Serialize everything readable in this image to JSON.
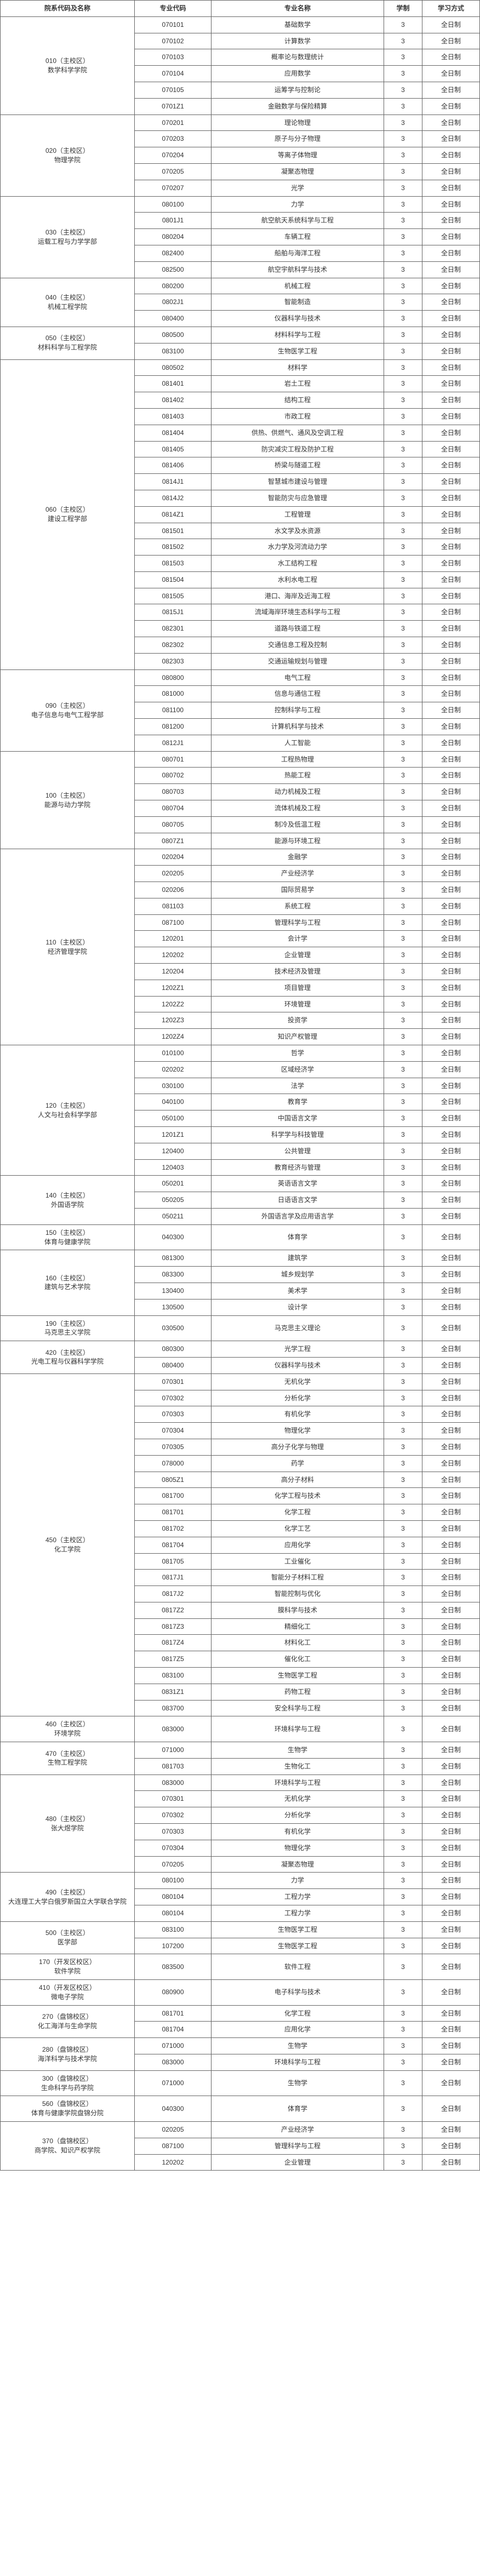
{
  "headers": {
    "dept": "院系代码及名称",
    "majorCode": "专业代码",
    "majorName": "专业名称",
    "years": "学制",
    "mode": "学习方式"
  },
  "defaults": {
    "years": "3",
    "mode": "全日制"
  },
  "departments": [
    {
      "name": "010（主校区）\n数学科学学院",
      "majors": [
        {
          "code": "070101",
          "name": "基础数学"
        },
        {
          "code": "070102",
          "name": "计算数学"
        },
        {
          "code": "070103",
          "name": "概率论与数理统计"
        },
        {
          "code": "070104",
          "name": "应用数学"
        },
        {
          "code": "070105",
          "name": "运筹学与控制论"
        },
        {
          "code": "0701Z1",
          "name": "金融数学与保险精算"
        }
      ]
    },
    {
      "name": "020（主校区）\n物理学院",
      "majors": [
        {
          "code": "070201",
          "name": "理论物理"
        },
        {
          "code": "070203",
          "name": "原子与分子物理"
        },
        {
          "code": "070204",
          "name": "等离子体物理"
        },
        {
          "code": "070205",
          "name": "凝聚态物理"
        },
        {
          "code": "070207",
          "name": "光学"
        }
      ]
    },
    {
      "name": "030（主校区）\n运载工程与力学学部",
      "majors": [
        {
          "code": "080100",
          "name": "力学"
        },
        {
          "code": "0801J1",
          "name": "航空航天系统科学与工程"
        },
        {
          "code": "080204",
          "name": "车辆工程"
        },
        {
          "code": "082400",
          "name": "船舶与海洋工程"
        },
        {
          "code": "082500",
          "name": "航空宇航科学与技术"
        }
      ]
    },
    {
      "name": "040（主校区）\n机械工程学院",
      "majors": [
        {
          "code": "080200",
          "name": "机械工程"
        },
        {
          "code": "0802J1",
          "name": "智能制造"
        },
        {
          "code": "080400",
          "name": "仪器科学与技术"
        }
      ]
    },
    {
      "name": "050（主校区）\n材料科学与工程学院",
      "majors": [
        {
          "code": "080500",
          "name": "材料科学与工程"
        },
        {
          "code": "083100",
          "name": "生物医学工程"
        }
      ]
    },
    {
      "name": "060（主校区）\n建设工程学部",
      "majors": [
        {
          "code": "080502",
          "name": "材料学"
        },
        {
          "code": "081401",
          "name": "岩土工程"
        },
        {
          "code": "081402",
          "name": "结构工程"
        },
        {
          "code": "081403",
          "name": "市政工程"
        },
        {
          "code": "081404",
          "name": "供热、供燃气、通风及空调工程"
        },
        {
          "code": "081405",
          "name": "防灾减灾工程及防护工程"
        },
        {
          "code": "081406",
          "name": "桥梁与隧道工程"
        },
        {
          "code": "0814J1",
          "name": "智慧城市建设与管理"
        },
        {
          "code": "0814J2",
          "name": "智能防灾与应急管理"
        },
        {
          "code": "0814Z1",
          "name": "工程管理"
        },
        {
          "code": "081501",
          "name": "水文学及水资源"
        },
        {
          "code": "081502",
          "name": "水力学及河流动力学"
        },
        {
          "code": "081503",
          "name": "水工结构工程"
        },
        {
          "code": "081504",
          "name": "水利水电工程"
        },
        {
          "code": "081505",
          "name": "港口、海岸及近海工程"
        },
        {
          "code": "0815J1",
          "name": "流域海岸环境生态科学与工程"
        },
        {
          "code": "082301",
          "name": "道路与铁道工程"
        },
        {
          "code": "082302",
          "name": "交通信息工程及控制"
        },
        {
          "code": "082303",
          "name": "交通运输规划与管理"
        }
      ]
    },
    {
      "name": "090（主校区）\n电子信息与电气工程学部",
      "majors": [
        {
          "code": "080800",
          "name": "电气工程"
        },
        {
          "code": "081000",
          "name": "信息与通信工程"
        },
        {
          "code": "081100",
          "name": "控制科学与工程"
        },
        {
          "code": "081200",
          "name": "计算机科学与技术"
        },
        {
          "code": "0812J1",
          "name": "人工智能"
        }
      ]
    },
    {
      "name": "100（主校区）\n能源与动力学院",
      "majors": [
        {
          "code": "080701",
          "name": "工程热物理"
        },
        {
          "code": "080702",
          "name": "热能工程"
        },
        {
          "code": "080703",
          "name": "动力机械及工程"
        },
        {
          "code": "080704",
          "name": "流体机械及工程"
        },
        {
          "code": "080705",
          "name": "制冷及低温工程"
        },
        {
          "code": "0807Z1",
          "name": "能源与环境工程"
        }
      ]
    },
    {
      "name": "110（主校区）\n经济管理学院",
      "majors": [
        {
          "code": "020204",
          "name": "金融学"
        },
        {
          "code": "020205",
          "name": "产业经济学"
        },
        {
          "code": "020206",
          "name": "国际贸易学"
        },
        {
          "code": "081103",
          "name": "系统工程"
        },
        {
          "code": "087100",
          "name": "管理科学与工程"
        },
        {
          "code": "120201",
          "name": "会计学"
        },
        {
          "code": "120202",
          "name": "企业管理"
        },
        {
          "code": "120204",
          "name": "技术经济及管理"
        },
        {
          "code": "1202Z1",
          "name": "项目管理"
        },
        {
          "code": "1202Z2",
          "name": "环境管理"
        },
        {
          "code": "1202Z3",
          "name": "投资学"
        },
        {
          "code": "1202Z4",
          "name": "知识产权管理"
        }
      ]
    },
    {
      "name": "120（主校区）\n人文与社会科学学部",
      "majors": [
        {
          "code": "010100",
          "name": "哲学"
        },
        {
          "code": "020202",
          "name": "区域经济学"
        },
        {
          "code": "030100",
          "name": "法学"
        },
        {
          "code": "040100",
          "name": "教育学"
        },
        {
          "code": "050100",
          "name": "中国语言文学"
        },
        {
          "code": "1201Z1",
          "name": "科学学与科技管理"
        },
        {
          "code": "120400",
          "name": "公共管理"
        },
        {
          "code": "120403",
          "name": "教育经济与管理"
        }
      ]
    },
    {
      "name": "140（主校区）\n外国语学院",
      "majors": [
        {
          "code": "050201",
          "name": "英语语言文学"
        },
        {
          "code": "050205",
          "name": "日语语言文学"
        },
        {
          "code": "050211",
          "name": "外国语言学及应用语言学"
        }
      ]
    },
    {
      "name": "150（主校区）\n体育与健康学院",
      "majors": [
        {
          "code": "040300",
          "name": "体育学"
        }
      ]
    },
    {
      "name": "160（主校区）\n建筑与艺术学院",
      "majors": [
        {
          "code": "081300",
          "name": "建筑学"
        },
        {
          "code": "083300",
          "name": "城乡规划学"
        },
        {
          "code": "130400",
          "name": "美术学"
        },
        {
          "code": "130500",
          "name": "设计学"
        }
      ]
    },
    {
      "name": "190（主校区）\n马克思主义学院",
      "majors": [
        {
          "code": "030500",
          "name": "马克思主义理论"
        }
      ]
    },
    {
      "name": "420（主校区）\n光电工程与仪器科学学院",
      "majors": [
        {
          "code": "080300",
          "name": "光学工程"
        },
        {
          "code": "080400",
          "name": "仪器科学与技术"
        }
      ]
    },
    {
      "name": "450（主校区）\n化工学院",
      "majors": [
        {
          "code": "070301",
          "name": "无机化学"
        },
        {
          "code": "070302",
          "name": "分析化学"
        },
        {
          "code": "070303",
          "name": "有机化学"
        },
        {
          "code": "070304",
          "name": "物理化学"
        },
        {
          "code": "070305",
          "name": "高分子化学与物理"
        },
        {
          "code": "078000",
          "name": "药学"
        },
        {
          "code": "0805Z1",
          "name": "高分子材料"
        },
        {
          "code": "081700",
          "name": "化学工程与技术"
        },
        {
          "code": "081701",
          "name": "化学工程"
        },
        {
          "code": "081702",
          "name": "化学工艺"
        },
        {
          "code": "081704",
          "name": "应用化学"
        },
        {
          "code": "081705",
          "name": "工业催化"
        },
        {
          "code": "0817J1",
          "name": "智能分子材料工程"
        },
        {
          "code": "0817J2",
          "name": "智能控制与优化"
        },
        {
          "code": "0817Z2",
          "name": "膜科学与技术"
        },
        {
          "code": "0817Z3",
          "name": "精细化工"
        },
        {
          "code": "0817Z4",
          "name": "材料化工"
        },
        {
          "code": "0817Z5",
          "name": "催化化工"
        },
        {
          "code": "083100",
          "name": "生物医学工程"
        },
        {
          "code": "0831Z1",
          "name": "药物工程"
        },
        {
          "code": "083700",
          "name": "安全科学与工程"
        }
      ]
    },
    {
      "name": "460（主校区）\n环境学院",
      "majors": [
        {
          "code": "083000",
          "name": "环境科学与工程"
        }
      ]
    },
    {
      "name": "470（主校区）\n生物工程学院",
      "majors": [
        {
          "code": "071000",
          "name": "生物学"
        },
        {
          "code": "081703",
          "name": "生物化工"
        }
      ]
    },
    {
      "name": "480（主校区）\n张大煜学院",
      "majors": [
        {
          "code": "083000",
          "name": "环境科学与工程"
        },
        {
          "code": "070301",
          "name": "无机化学"
        },
        {
          "code": "070302",
          "name": "分析化学"
        },
        {
          "code": "070303",
          "name": "有机化学"
        },
        {
          "code": "070304",
          "name": "物理化学"
        },
        {
          "code": "070205",
          "name": "凝聚态物理"
        }
      ]
    },
    {
      "name": "490（主校区）\n大连理工大学白俄罗斯国立大学联合学院",
      "majors": [
        {
          "code": "080100",
          "name": "力学"
        },
        {
          "code": "080104",
          "name": "工程力学"
        },
        {
          "code": "080104",
          "name": "工程力学"
        }
      ]
    },
    {
      "name": "500（主校区）\n医学部",
      "majors": [
        {
          "code": "083100",
          "name": "生物医学工程"
        },
        {
          "code": "107200",
          "name": "生物医学工程"
        }
      ]
    },
    {
      "name": "170（开发区校区）\n软件学院",
      "majors": [
        {
          "code": "083500",
          "name": "软件工程"
        }
      ]
    },
    {
      "name": "410（开发区校区）\n微电子学院",
      "majors": [
        {
          "code": "080900",
          "name": "电子科学与技术"
        }
      ]
    },
    {
      "name": "270（盘锦校区）\n化工海洋与生命学院",
      "majors": [
        {
          "code": "081701",
          "name": "化学工程"
        },
        {
          "code": "081704",
          "name": "应用化学"
        }
      ]
    },
    {
      "name": "280（盘锦校区）\n海洋科学与技术学院",
      "majors": [
        {
          "code": "071000",
          "name": "生物学"
        },
        {
          "code": "083000",
          "name": "环境科学与工程"
        }
      ]
    },
    {
      "name": "300（盘锦校区）\n生命科学与药学院",
      "majors": [
        {
          "code": "071000",
          "name": "生物学"
        }
      ]
    },
    {
      "name": "560（盘锦校区）\n体育与健康学院盘锦分院",
      "majors": [
        {
          "code": "040300",
          "name": "体育学"
        }
      ]
    },
    {
      "name": "370（盘锦校区）\n商学院、知识产权学院",
      "majors": [
        {
          "code": "020205",
          "name": "产业经济学"
        },
        {
          "code": "087100",
          "name": "管理科学与工程"
        },
        {
          "code": "120202",
          "name": "企业管理"
        }
      ]
    }
  ]
}
